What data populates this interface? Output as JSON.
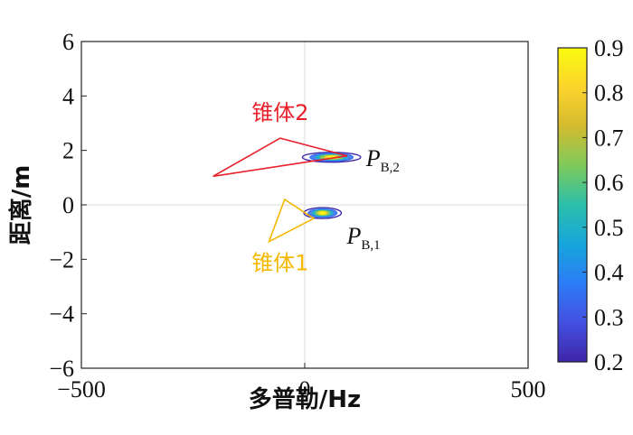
{
  "chart_data": {
    "type": "contour",
    "xlabel": "多普勒/Hz",
    "ylabel": "距离/m",
    "xlim": [
      -500,
      500
    ],
    "ylim": [
      -6,
      6
    ],
    "x_ticks": [
      -500,
      0,
      500
    ],
    "y_ticks": [
      -6,
      -4,
      -2,
      0,
      2,
      4,
      6
    ],
    "grid": "center lines",
    "colorbar": {
      "position": "right",
      "range": [
        0.2,
        0.9
      ],
      "ticks": [
        0.9,
        0.8,
        0.7,
        0.6,
        0.5,
        0.4,
        0.3,
        0.2
      ],
      "colormap": [
        "#3e26a8",
        "#4450e2",
        "#2c7cf6",
        "#16a6dc",
        "#2bbfab",
        "#7dca5b",
        "#d4bb2f",
        "#fcd42c",
        "#f9fb0e"
      ]
    },
    "peaks": [
      {
        "label": "P",
        "sub": "B,2",
        "center": [
          60,
          1.75
        ],
        "levels": [
          {
            "value": 0.2,
            "rx": 65,
            "ry": 0.18
          },
          {
            "value": 0.35,
            "rx": 48,
            "ry": 0.14
          },
          {
            "value": 0.5,
            "rx": 35,
            "ry": 0.1
          },
          {
            "value": 0.65,
            "rx": 25,
            "ry": 0.07
          },
          {
            "value": 0.8,
            "rx": 15,
            "ry": 0.05
          },
          {
            "value": 0.9,
            "rx": 7,
            "ry": 0.03
          }
        ]
      },
      {
        "label": "P",
        "sub": "B,1",
        "center": [
          40,
          -0.3
        ],
        "levels": [
          {
            "value": 0.2,
            "rx": 42,
            "ry": 0.2
          },
          {
            "value": 0.35,
            "rx": 32,
            "ry": 0.15
          },
          {
            "value": 0.5,
            "rx": 23,
            "ry": 0.11
          },
          {
            "value": 0.65,
            "rx": 16,
            "ry": 0.08
          },
          {
            "value": 0.8,
            "rx": 10,
            "ry": 0.05
          },
          {
            "value": 0.9,
            "rx": 5,
            "ry": 0.03
          }
        ]
      }
    ],
    "annotations": [
      {
        "text": "锥体2",
        "color": "#e8202a",
        "triangle": [
          [
            -205,
            1.05
          ],
          [
            -55,
            2.45
          ],
          [
            95,
            1.8
          ]
        ]
      },
      {
        "text": "锥体1",
        "color": "#f5b800",
        "triangle": [
          [
            -80,
            -1.35
          ],
          [
            -45,
            0.2
          ],
          [
            20,
            -0.5
          ]
        ]
      }
    ]
  }
}
